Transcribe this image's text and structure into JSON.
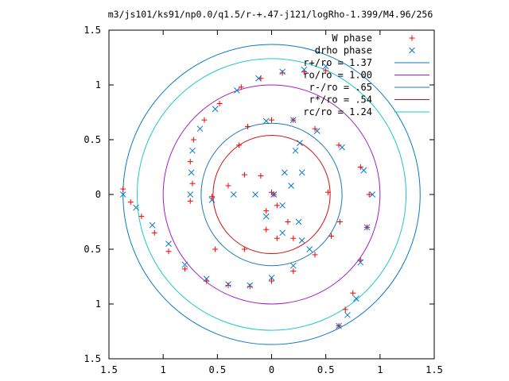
{
  "chart_data": {
    "type": "scatter",
    "title": "m3/js101/ks91/np0.0/q1.5/r-+.47-j121/logRho-1.399/M4.96/256",
    "xlabel": "",
    "ylabel": "",
    "xlim": [
      -1.5,
      1.5
    ],
    "ylim": [
      -1.5,
      1.5
    ],
    "x_ticks": [
      "1.5",
      "1",
      "0.5",
      "0",
      "0.5",
      "1",
      "1.5"
    ],
    "y_ticks": [
      "1.5",
      "1",
      "0.5",
      "0",
      "0.5",
      "1",
      "1.5"
    ],
    "grid": false,
    "legend_position": "top-right",
    "circles": [
      {
        "name": "r+/ro = 1.37",
        "radius": 1.37,
        "color": "#0c78c8"
      },
      {
        "name": "ro/ro = 1.00",
        "radius": 1.0,
        "color": "#a020c0"
      },
      {
        "name": "r-/ro = .65",
        "radius": 0.65,
        "color": "#1f78b4"
      },
      {
        "name": "r*/ro = .54",
        "radius": 0.54,
        "color": "#cc1010"
      },
      {
        "name": "rc/ro = 1.24",
        "radius": 1.24,
        "color": "#1ec8c8"
      }
    ],
    "series": [
      {
        "name": "W phase",
        "marker": "+",
        "color": "#ff0000",
        "points": [
          [
            -1.37,
            0.05
          ],
          [
            -1.3,
            -0.07
          ],
          [
            -1.2,
            -0.2
          ],
          [
            -1.08,
            -0.35
          ],
          [
            -0.95,
            -0.52
          ],
          [
            -0.8,
            -0.68
          ],
          [
            -0.6,
            -0.79
          ],
          [
            -0.4,
            -0.83
          ],
          [
            -0.2,
            -0.84
          ],
          [
            0.0,
            -0.79
          ],
          [
            0.2,
            -0.7
          ],
          [
            0.4,
            -0.55
          ],
          [
            0.55,
            -0.38
          ],
          [
            0.63,
            -0.25
          ],
          [
            -0.75,
            -0.06
          ],
          [
            -0.73,
            0.1
          ],
          [
            -0.75,
            0.3
          ],
          [
            -0.72,
            0.5
          ],
          [
            -0.62,
            0.68
          ],
          [
            -0.48,
            0.83
          ],
          [
            -0.28,
            0.98
          ],
          [
            -0.1,
            1.06
          ],
          [
            0.1,
            1.11
          ],
          [
            0.3,
            1.12
          ],
          [
            0.5,
            1.13
          ],
          [
            -0.22,
            0.62
          ],
          [
            0.0,
            0.68
          ],
          [
            0.2,
            0.68
          ],
          [
            0.4,
            0.6
          ],
          [
            0.62,
            0.45
          ],
          [
            0.82,
            0.25
          ],
          [
            0.9,
            0.0
          ],
          [
            0.88,
            -0.3
          ],
          [
            0.82,
            -0.6
          ],
          [
            0.75,
            -0.9
          ],
          [
            0.68,
            -1.05
          ],
          [
            0.62,
            -1.2
          ],
          [
            -0.52,
            -0.5
          ],
          [
            -0.25,
            -0.5
          ],
          [
            -0.3,
            0.45
          ],
          [
            0.52,
            0.02
          ],
          [
            -0.55,
            -0.02
          ],
          [
            -0.4,
            0.08
          ],
          [
            -0.25,
            0.18
          ],
          [
            -0.1,
            0.17
          ],
          [
            0.0,
            0.02
          ],
          [
            -0.05,
            -0.15
          ],
          [
            -0.05,
            -0.32
          ],
          [
            0.05,
            -0.4
          ],
          [
            0.2,
            -0.4
          ],
          [
            0.15,
            -0.25
          ],
          [
            0.05,
            -0.1
          ],
          [
            0.02,
            0.0
          ]
        ]
      },
      {
        "name": "drho phase",
        "marker": "x",
        "color": "#0c78c8",
        "points": [
          [
            -1.37,
            0.0
          ],
          [
            -1.25,
            -0.12
          ],
          [
            -1.1,
            -0.28
          ],
          [
            -0.95,
            -0.45
          ],
          [
            -0.8,
            -0.64
          ],
          [
            -0.6,
            -0.77
          ],
          [
            -0.4,
            -0.82
          ],
          [
            -0.2,
            -0.83
          ],
          [
            0.0,
            -0.76
          ],
          [
            0.2,
            -0.65
          ],
          [
            0.35,
            -0.5
          ],
          [
            -0.75,
            0.0
          ],
          [
            -0.74,
            0.2
          ],
          [
            -0.73,
            0.4
          ],
          [
            -0.66,
            0.6
          ],
          [
            -0.52,
            0.78
          ],
          [
            -0.32,
            0.95
          ],
          [
            -0.12,
            1.06
          ],
          [
            0.1,
            1.12
          ],
          [
            0.3,
            1.14
          ],
          [
            0.5,
            1.17
          ],
          [
            -0.05,
            0.67
          ],
          [
            0.2,
            0.68
          ],
          [
            0.42,
            0.58
          ],
          [
            0.65,
            0.43
          ],
          [
            0.85,
            0.22
          ],
          [
            0.93,
            0.0
          ],
          [
            0.88,
            -0.3
          ],
          [
            0.82,
            -0.62
          ],
          [
            0.78,
            -0.95
          ],
          [
            0.7,
            -1.1
          ],
          [
            0.62,
            -1.2
          ],
          [
            -0.55,
            -0.05
          ],
          [
            -0.35,
            0.0
          ],
          [
            -0.15,
            0.0
          ],
          [
            0.02,
            0.0
          ],
          [
            0.12,
            0.2
          ],
          [
            0.22,
            0.4
          ],
          [
            0.26,
            0.47
          ],
          [
            0.28,
            0.2
          ],
          [
            0.18,
            0.08
          ],
          [
            0.02,
            0.0
          ],
          [
            -0.05,
            -0.2
          ],
          [
            0.1,
            -0.35
          ],
          [
            0.28,
            -0.42
          ],
          [
            0.25,
            -0.25
          ],
          [
            0.1,
            -0.1
          ]
        ]
      }
    ]
  }
}
